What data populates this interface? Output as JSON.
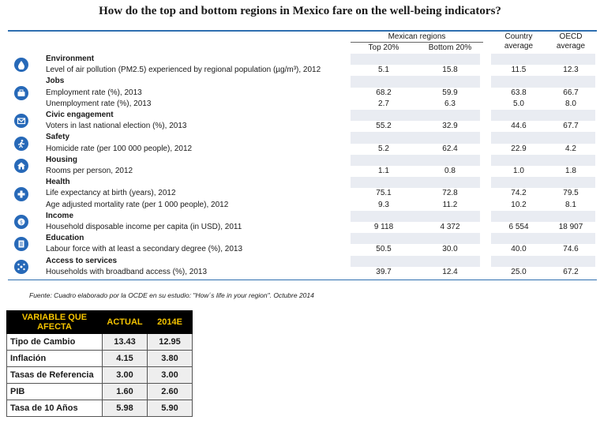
{
  "title": "How do the top and bottom regions in Mexico fare on the well-being indicators?",
  "columns": {
    "group": "Mexican regions",
    "top": "Top 20%",
    "bottom": "Bottom 20%",
    "country": [
      "Country",
      "average"
    ],
    "oecd": [
      "OECD",
      "average"
    ]
  },
  "sections": [
    {
      "category": "Environment",
      "icon": "environment-icon",
      "rows": [
        {
          "label": "Level of air pollution (PM2.5) experienced by regional population (µg/m³), 2012",
          "top": "5.1",
          "bottom": "15.8",
          "country": "11.5",
          "oecd": "12.3"
        }
      ]
    },
    {
      "category": "Jobs",
      "icon": "jobs-icon",
      "rows": [
        {
          "label": "Employment rate (%), 2013",
          "top": "68.2",
          "bottom": "59.9",
          "country": "63.8",
          "oecd": "66.7"
        },
        {
          "label": "Unemployment rate (%), 2013",
          "top": "2.7",
          "bottom": "6.3",
          "country": "5.0",
          "oecd": "8.0"
        }
      ]
    },
    {
      "category": "Civic engagement",
      "icon": "civic-engagement-icon",
      "rows": [
        {
          "label": "Voters in last national election (%), 2013",
          "top": "55.2",
          "bottom": "32.9",
          "country": "44.6",
          "oecd": "67.7"
        }
      ]
    },
    {
      "category": "Safety",
      "icon": "safety-icon",
      "rows": [
        {
          "label": "Homicide rate (per 100 000 people), 2012",
          "top": "5.2",
          "bottom": "62.4",
          "country": "22.9",
          "oecd": "4.2"
        }
      ]
    },
    {
      "category": "Housing",
      "icon": "housing-icon",
      "rows": [
        {
          "label": "Rooms per person, 2012",
          "top": "1.1",
          "bottom": "0.8",
          "country": "1.0",
          "oecd": "1.8"
        }
      ]
    },
    {
      "category": "Health",
      "icon": "health-icon",
      "rows": [
        {
          "label": "Life expectancy at birth (years), 2012",
          "top": "75.1",
          "bottom": "72.8",
          "country": "74.2",
          "oecd": "79.5"
        },
        {
          "label": "Age adjusted mortality rate (per 1 000 people), 2012",
          "top": "9.3",
          "bottom": "11.2",
          "country": "10.2",
          "oecd": "8.1"
        }
      ]
    },
    {
      "category": "Income",
      "icon": "income-icon",
      "rows": [
        {
          "label": "Household disposable income per capita (in USD), 2011",
          "top": "9 118",
          "bottom": "4 372",
          "country": "6 554",
          "oecd": "18 907"
        }
      ]
    },
    {
      "category": "Education",
      "icon": "education-icon",
      "rows": [
        {
          "label": "Labour force with at least a secondary degree (%), 2013",
          "top": "50.5",
          "bottom": "30.0",
          "country": "40.0",
          "oecd": "74.6"
        }
      ]
    },
    {
      "category": "Access to services",
      "icon": "access-to-services-icon",
      "rows": [
        {
          "label": "Households with broadband access (%), 2013",
          "top": "39.7",
          "bottom": "12.4",
          "country": "25.0",
          "oecd": "67.2"
        }
      ]
    }
  ],
  "source": "Fuente: Cuadro elaborado por la OCDE en su estudio: \"How´s life in your region\". Octubre 2014",
  "fx_table": {
    "headers": [
      "VARIABLE QUE AFECTA",
      "ACTUAL",
      "2014E"
    ],
    "rows": [
      {
        "name": "Tipo de Cambio",
        "actual": "13.43",
        "est": "12.95"
      },
      {
        "name": "Inflación",
        "actual": "4.15",
        "est": "3.80"
      },
      {
        "name": "Tasas de Referencia",
        "actual": "3.00",
        "est": "3.00"
      },
      {
        "name": "PIB",
        "actual": "1.60",
        "est": "2.60"
      },
      {
        "name": "Tasa de 10 Años",
        "actual": "5.98",
        "est": "5.90"
      }
    ]
  },
  "colors": {
    "accent": "#2769b8",
    "header_bg": "#000000",
    "header_text": "#f5c400"
  }
}
